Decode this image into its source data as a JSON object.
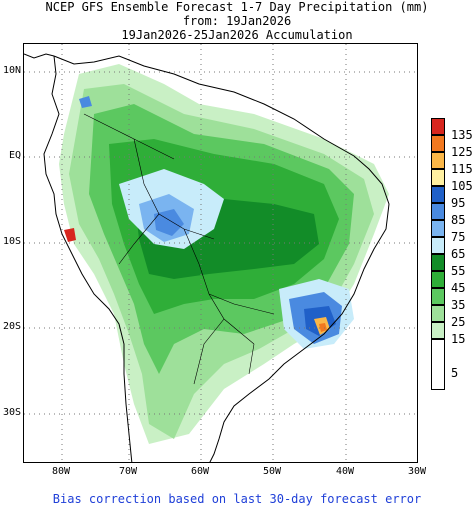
{
  "title": {
    "line1": "NCEP GFS Ensemble Forecast 1-7 Day Precipitation (mm)",
    "line2": "from: 19Jan2026",
    "line3": "19Jan2026-25Jan2026 Accumulation"
  },
  "map": {
    "lat_labels": [
      "10N",
      "EQ",
      "10S",
      "20S",
      "30S"
    ],
    "lon_labels": [
      "80W",
      "70W",
      "60W",
      "50W",
      "40W",
      "30W"
    ],
    "extent": {
      "lon": [
        -84,
        -30
      ],
      "lat": [
        -36,
        13
      ]
    },
    "graticule": "dotted",
    "colors": {
      "ocean": "#ffffff",
      "land_dry": "#ffffff",
      "coast": "#000000"
    }
  },
  "legend": {
    "items": [
      {
        "label": "135",
        "color": "#d7261e"
      },
      {
        "label": "125",
        "color": "#f2781f"
      },
      {
        "label": "115",
        "color": "#fbb748"
      },
      {
        "label": "105",
        "color": "#fff0a1"
      },
      {
        "label": "95",
        "color": "#2060c8"
      },
      {
        "label": "85",
        "color": "#4a8ae0"
      },
      {
        "label": "75",
        "color": "#7ab4f0"
      },
      {
        "label": "65",
        "color": "#c8ecfa"
      },
      {
        "label": "55",
        "color": "#128c28"
      },
      {
        "label": "45",
        "color": "#2fae38"
      },
      {
        "label": "35",
        "color": "#5cc860"
      },
      {
        "label": "25",
        "color": "#9ee09a"
      },
      {
        "label": "15",
        "color": "#c9f0c5"
      },
      {
        "label": "5",
        "color": "#ffffff"
      }
    ]
  },
  "footer": "Bias correction based on last 30-day forecast error"
}
